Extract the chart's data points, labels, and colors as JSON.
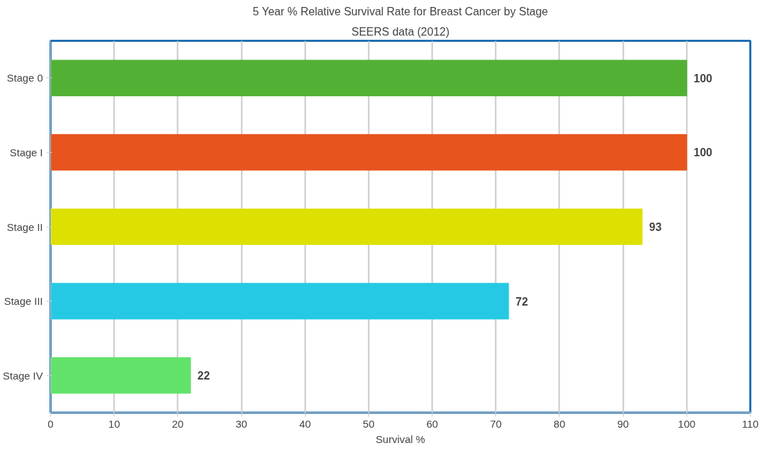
{
  "chart_data": {
    "type": "bar",
    "orientation": "horizontal",
    "title": "5 Year % Relative Survival Rate for Breast Cancer by Stage",
    "subtitle": "SEERS data (2012)",
    "xlabel": "Survival %",
    "categories": [
      "Stage 0",
      "Stage I",
      "Stage II",
      "Stage III",
      "Stage IV"
    ],
    "values": [
      100,
      100,
      93,
      72,
      22
    ],
    "colors": [
      "#52b135",
      "#e8541e",
      "#dde000",
      "#26c9e3",
      "#62e26a"
    ],
    "xlim": [
      0,
      110
    ],
    "xticks": [
      0,
      10,
      20,
      30,
      40,
      50,
      60,
      70,
      80,
      90,
      100,
      110
    ],
    "grid": "x",
    "data_labels": true
  }
}
